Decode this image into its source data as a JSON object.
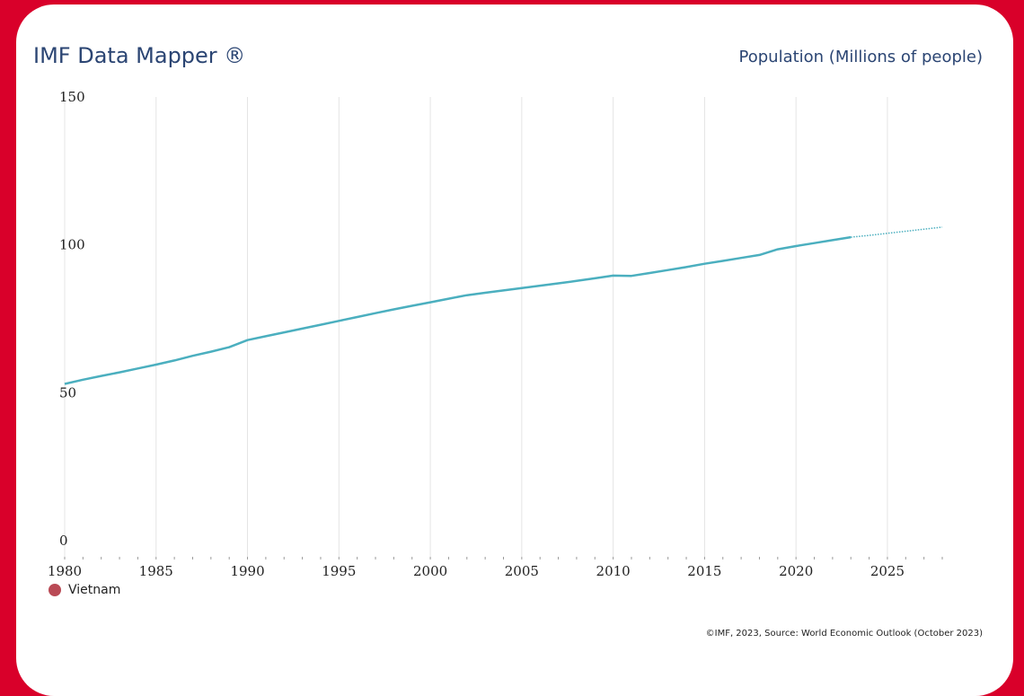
{
  "header": {
    "brand": "IMF Data Mapper ®",
    "subtitle": "Population (Millions of people)"
  },
  "footer": {
    "source": "©IMF, 2023, Source: World Economic Outlook (October 2023)"
  },
  "colors": {
    "background": "#d9002a",
    "line": "#4bafbf",
    "legend_dot": "#b94a55",
    "grid": "#e4e4e4"
  },
  "chart_data": {
    "type": "line",
    "title": "Population (Millions of people)",
    "xlabel": "",
    "ylabel": "",
    "xlim": [
      1980,
      2028
    ],
    "ylim": [
      0,
      150
    ],
    "xticks": [
      "1980",
      "1985",
      "1990",
      "1995",
      "2000",
      "2005",
      "2010",
      "2015",
      "2020",
      "2025"
    ],
    "yticks": [
      "0",
      "50",
      "100",
      "150"
    ],
    "grid": "vertical",
    "legend_position": "bottom-left",
    "series": [
      {
        "name": "Vietnam",
        "x": [
          1980,
          1981,
          1982,
          1983,
          1984,
          1985,
          1986,
          1987,
          1988,
          1989,
          1990,
          1991,
          1992,
          1993,
          1994,
          1995,
          1996,
          1997,
          1998,
          1999,
          2000,
          2001,
          2002,
          2003,
          2004,
          2005,
          2006,
          2007,
          2008,
          2009,
          2010,
          2011,
          2012,
          2013,
          2014,
          2015,
          2016,
          2017,
          2018,
          2019,
          2020,
          2021,
          2022,
          2023,
          2024,
          2025,
          2026,
          2027,
          2028
        ],
        "values": [
          53.0,
          54.4,
          55.7,
          56.9,
          58.2,
          59.5,
          60.9,
          62.5,
          63.9,
          65.4,
          67.8,
          69.1,
          70.4,
          71.7,
          73.0,
          74.3,
          75.6,
          76.9,
          78.2,
          79.4,
          80.6,
          81.8,
          83.0,
          83.8,
          84.6,
          85.4,
          86.2,
          87.0,
          87.8,
          88.7,
          89.6,
          89.5,
          90.5,
          91.5,
          92.5,
          93.6,
          94.6,
          95.6,
          96.6,
          98.5,
          99.6,
          100.6,
          101.6,
          102.6,
          103.2,
          103.9,
          104.6,
          105.3,
          106.0
        ],
        "projection_start": 2023
      }
    ]
  }
}
